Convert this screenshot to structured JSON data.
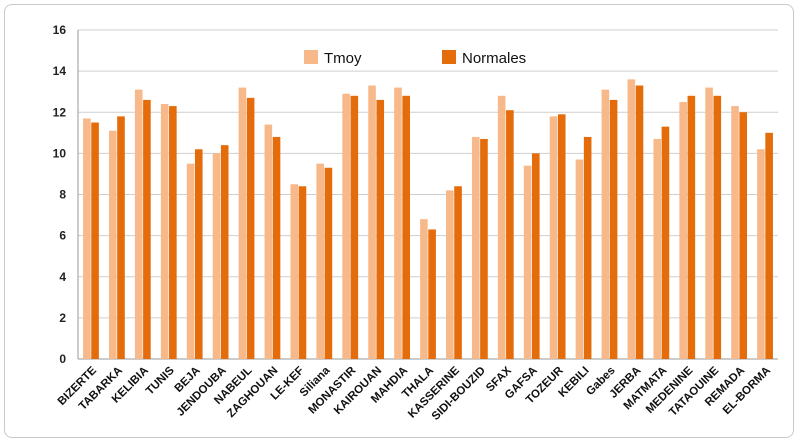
{
  "chart_data": {
    "type": "bar",
    "title": "",
    "xlabel": "",
    "ylabel": "",
    "ylim": [
      0,
      16
    ],
    "yticks": [
      0,
      2,
      4,
      6,
      8,
      10,
      12,
      14,
      16
    ],
    "grid": true,
    "legend_position": "top",
    "categories": [
      "BIZERTE",
      "TABARKA",
      "KELIBIA",
      "TUNIS",
      "BEJA",
      "JENDOUBA",
      "NABEUL",
      "ZAGHOUAN",
      "LE-KEF",
      "Siliana",
      "MONASTIR",
      "KAIROUAN",
      "MAHDIA",
      "THALA",
      "KASSERINE",
      "SIDI-BOUZID",
      "SFAX",
      "GAFSA",
      "TOZEUR",
      "KEBILI",
      "Gabes",
      "JERBA",
      "MATMATA",
      "MEDENINE",
      "TATAOUINE",
      "REMADA",
      "EL-BORMA"
    ],
    "series": [
      {
        "name": "Tmoy",
        "color": "#f8b98a",
        "values": [
          11.7,
          11.1,
          13.1,
          12.4,
          9.5,
          10.0,
          13.2,
          11.4,
          8.5,
          9.5,
          12.9,
          13.3,
          13.2,
          6.8,
          8.2,
          10.8,
          12.8,
          9.4,
          11.8,
          9.7,
          13.1,
          13.6,
          10.7,
          12.5,
          13.2,
          12.3,
          10.2
        ]
      },
      {
        "name": "Normales",
        "color": "#e46c0a",
        "values": [
          11.5,
          11.8,
          12.6,
          12.3,
          10.2,
          10.4,
          12.7,
          10.8,
          8.4,
          9.3,
          12.8,
          12.6,
          12.8,
          6.3,
          8.4,
          10.7,
          12.1,
          10.0,
          11.9,
          10.8,
          12.6,
          13.3,
          11.3,
          12.8,
          12.8,
          12.0,
          11.0
        ]
      }
    ]
  }
}
